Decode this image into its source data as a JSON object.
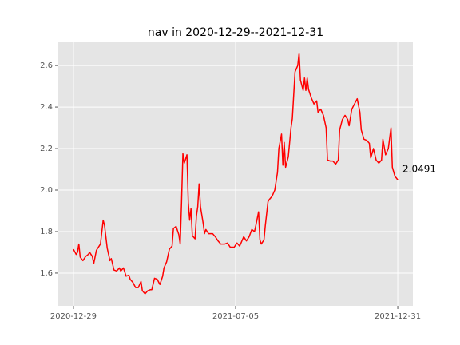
{
  "chart_data": {
    "type": "line",
    "title": "nav in 2020-12-29--2021-12-31",
    "x": [
      0,
      2,
      3,
      4,
      5,
      7,
      9,
      11,
      12,
      14,
      15,
      17,
      20,
      22,
      23,
      25,
      27,
      28,
      30,
      32,
      34,
      35,
      37,
      39,
      41,
      42,
      44,
      46,
      48,
      50,
      51,
      53,
      55,
      57,
      58,
      60,
      62,
      64,
      66,
      67,
      69,
      71,
      73,
      74,
      76,
      78,
      79,
      80,
      81,
      82,
      84,
      85,
      86,
      87,
      88,
      90,
      91,
      92,
      93,
      94,
      96,
      97,
      98,
      100,
      102,
      103,
      105,
      107,
      109,
      110,
      112,
      114,
      116,
      118,
      119,
      121,
      123,
      125,
      126,
      128,
      130,
      132,
      134,
      135,
      137,
      138,
      139,
      141,
      142,
      144,
      145,
      147,
      149,
      151,
      152,
      154,
      155,
      156,
      157,
      159,
      161,
      162,
      164,
      166,
      167,
      168,
      170,
      171,
      172,
      173,
      174,
      176,
      178,
      180,
      181,
      183,
      185,
      187,
      188,
      190,
      192,
      194,
      196,
      197,
      199,
      201,
      203,
      204,
      206,
      208,
      210,
      212,
      213,
      215,
      217,
      219,
      220,
      222,
      224,
      226,
      228,
      229,
      231,
      233,
      235,
      236,
      238,
      239,
      240
    ],
    "values": [
      1.715,
      1.69,
      1.7,
      1.74,
      1.677,
      1.66,
      1.68,
      1.69,
      1.7,
      1.68,
      1.645,
      1.71,
      1.74,
      1.855,
      1.83,
      1.72,
      1.66,
      1.67,
      1.615,
      1.61,
      1.625,
      1.61,
      1.625,
      1.585,
      1.59,
      1.57,
      1.555,
      1.53,
      1.53,
      1.56,
      1.515,
      1.5,
      1.515,
      1.52,
      1.52,
      1.575,
      1.57,
      1.545,
      1.585,
      1.625,
      1.655,
      1.715,
      1.73,
      1.815,
      1.825,
      1.785,
      1.74,
      1.94,
      2.175,
      2.13,
      2.17,
      1.94,
      1.855,
      1.91,
      1.78,
      1.765,
      1.875,
      1.92,
      2.03,
      1.92,
      1.84,
      1.79,
      1.81,
      1.79,
      1.79,
      1.79,
      1.775,
      1.755,
      1.74,
      1.74,
      1.74,
      1.745,
      1.725,
      1.725,
      1.725,
      1.745,
      1.73,
      1.76,
      1.775,
      1.755,
      1.775,
      1.81,
      1.8,
      1.83,
      1.895,
      1.76,
      1.74,
      1.76,
      1.83,
      1.945,
      1.955,
      1.97,
      2.0,
      2.085,
      2.2,
      2.27,
      2.12,
      2.23,
      2.11,
      2.16,
      2.3,
      2.345,
      2.57,
      2.6,
      2.66,
      2.53,
      2.48,
      2.54,
      2.48,
      2.54,
      2.485,
      2.445,
      2.415,
      2.43,
      2.375,
      2.39,
      2.36,
      2.3,
      2.145,
      2.14,
      2.14,
      2.125,
      2.145,
      2.29,
      2.34,
      2.36,
      2.34,
      2.31,
      2.39,
      2.415,
      2.44,
      2.375,
      2.29,
      2.245,
      2.24,
      2.225,
      2.155,
      2.2,
      2.145,
      2.13,
      2.145,
      2.245,
      2.17,
      2.2,
      2.3,
      2.11,
      2.065,
      2.058,
      2.0491
    ],
    "color": "#ff0000",
    "xlim": [
      -11.2,
      251.2
    ],
    "xticks": [
      {
        "value": 0,
        "label": "2020-12-29"
      },
      {
        "value": 120,
        "label": "2021-07-05"
      },
      {
        "value": 240,
        "label": "2021-12-31"
      }
    ],
    "ylim": [
      1.442,
      2.712
    ],
    "yticks": [
      1.6,
      1.8,
      {
        "value": 2,
        "label": "2.0"
      },
      2.2,
      2.4,
      2.6
    ],
    "grid": true
  }
}
